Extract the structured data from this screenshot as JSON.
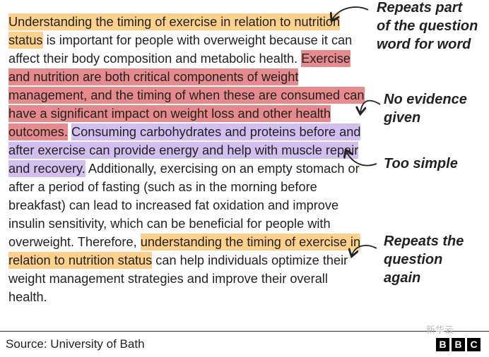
{
  "colors": {
    "orange": "#fdd08b",
    "red": "#e78a8e",
    "purple": "#d2bff0"
  },
  "essay": {
    "seg1": "Understanding the timing of exercise in relation to nutrition status",
    "seg2": " is important for people with overweight because it can affect their body composition and metabolic health. ",
    "seg3": "Exercise and nutrition are both critical components of weight management, and the timing of when these are consumed can have a significant impact on weight loss and other health outcomes.",
    "seg4": " ",
    "seg5": "Consuming carbohydrates and proteins before and after exercise can provide energy and help with muscle repair and recovery.",
    "seg6": " Additionally, exercising on an empty stomach or after a period of fasting (such as in the morning before breakfast) can lead to increased fat oxidation and improve insulin sensitivity, which can be beneficial for people with overweight. Therefore, ",
    "seg7": "understanding the timing of exercise in relation to nutrition status",
    "seg8": " can help individuals optimize their weight management strategies and improve their overall health."
  },
  "annotations": {
    "note1_l1": "Repeats part",
    "note1_l2": "of the question",
    "note1_l3": "word for word",
    "note2_l1": "No evidence",
    "note2_l2": "given",
    "note3_l1": "Too simple",
    "note4_l1": "Repeats the",
    "note4_l2": "question",
    "note4_l3": "again"
  },
  "footer": {
    "source": "Source: University of Bath",
    "logo_letters": [
      "B",
      "B",
      "C"
    ],
    "watermark": "新华云"
  }
}
